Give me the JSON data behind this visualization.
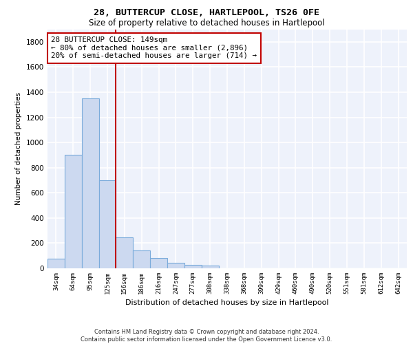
{
  "title": "28, BUTTERCUP CLOSE, HARTLEPOOL, TS26 0FE",
  "subtitle": "Size of property relative to detached houses in Hartlepool",
  "xlabel": "Distribution of detached houses by size in Hartlepool",
  "ylabel": "Number of detached properties",
  "footer_line1": "Contains HM Land Registry data © Crown copyright and database right 2024.",
  "footer_line2": "Contains public sector information licensed under the Open Government Licence v3.0.",
  "bin_labels": [
    "34sqm",
    "64sqm",
    "95sqm",
    "125sqm",
    "156sqm",
    "186sqm",
    "216sqm",
    "247sqm",
    "277sqm",
    "308sqm",
    "338sqm",
    "368sqm",
    "399sqm",
    "429sqm",
    "460sqm",
    "490sqm",
    "520sqm",
    "551sqm",
    "581sqm",
    "612sqm",
    "642sqm"
  ],
  "bar_values": [
    75,
    900,
    1350,
    700,
    245,
    140,
    80,
    42,
    30,
    20,
    0,
    0,
    0,
    0,
    0,
    0,
    0,
    0,
    0,
    0,
    0
  ],
  "bar_color": "#ccd9f0",
  "bar_edge_color": "#7aabdb",
  "vline_bin_index": 3.5,
  "annotation_title": "28 BUTTERCUP CLOSE: 149sqm",
  "annotation_line1": "← 80% of detached houses are smaller (2,896)",
  "annotation_line2": "20% of semi-detached houses are larger (714) →",
  "vline_color": "#c00000",
  "annotation_box_edgecolor": "#c00000",
  "ylim": [
    0,
    1900
  ],
  "yticks": [
    0,
    200,
    400,
    600,
    800,
    1000,
    1200,
    1400,
    1600,
    1800
  ],
  "background_color": "#eef2fb",
  "grid_color": "#ffffff"
}
